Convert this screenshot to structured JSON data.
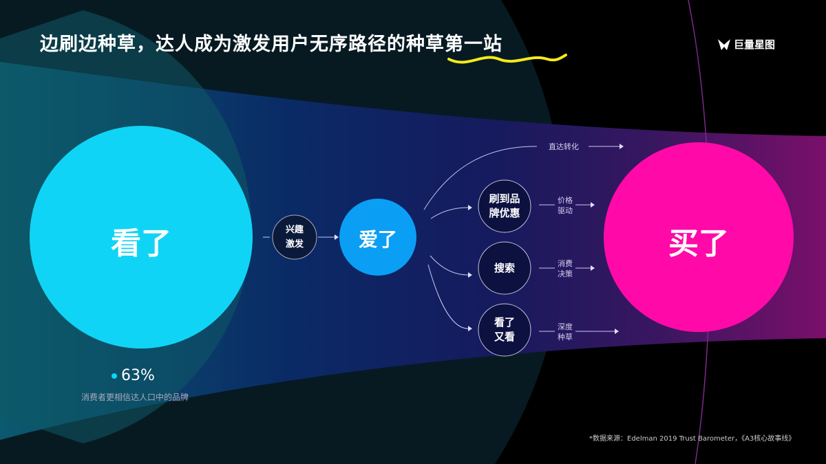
{
  "title": "边刷边种草，达人成为激发用户无序路径的种草第一站",
  "logo": {
    "text": "巨量星图",
    "icon": "star-chart-logo-icon"
  },
  "nodes": {
    "watched": "看了",
    "interest": [
      "兴趣",
      "激发"
    ],
    "loved": "爱了",
    "bought": "买了",
    "brand_deal": [
      "刷到品",
      "牌优惠"
    ],
    "search": "搜索",
    "rewatch": [
      "看了",
      "又看"
    ]
  },
  "edges": {
    "direct": "直达转化",
    "price": [
      "价格",
      "驱动"
    ],
    "decision": [
      "消费",
      "决策"
    ],
    "deep": [
      "深度",
      "种草"
    ]
  },
  "stat": {
    "value": "63%",
    "label": "消费者更相信达人口中的品牌"
  },
  "footnote": "*数据来源：Edelman 2019 Trust Barometer，《A3核心故事线》",
  "colors": {
    "watched": "#10d4f5",
    "loved": "#0a9ff5",
    "bought": "#ff0aa8",
    "highlight": "#f5ea1a"
  }
}
